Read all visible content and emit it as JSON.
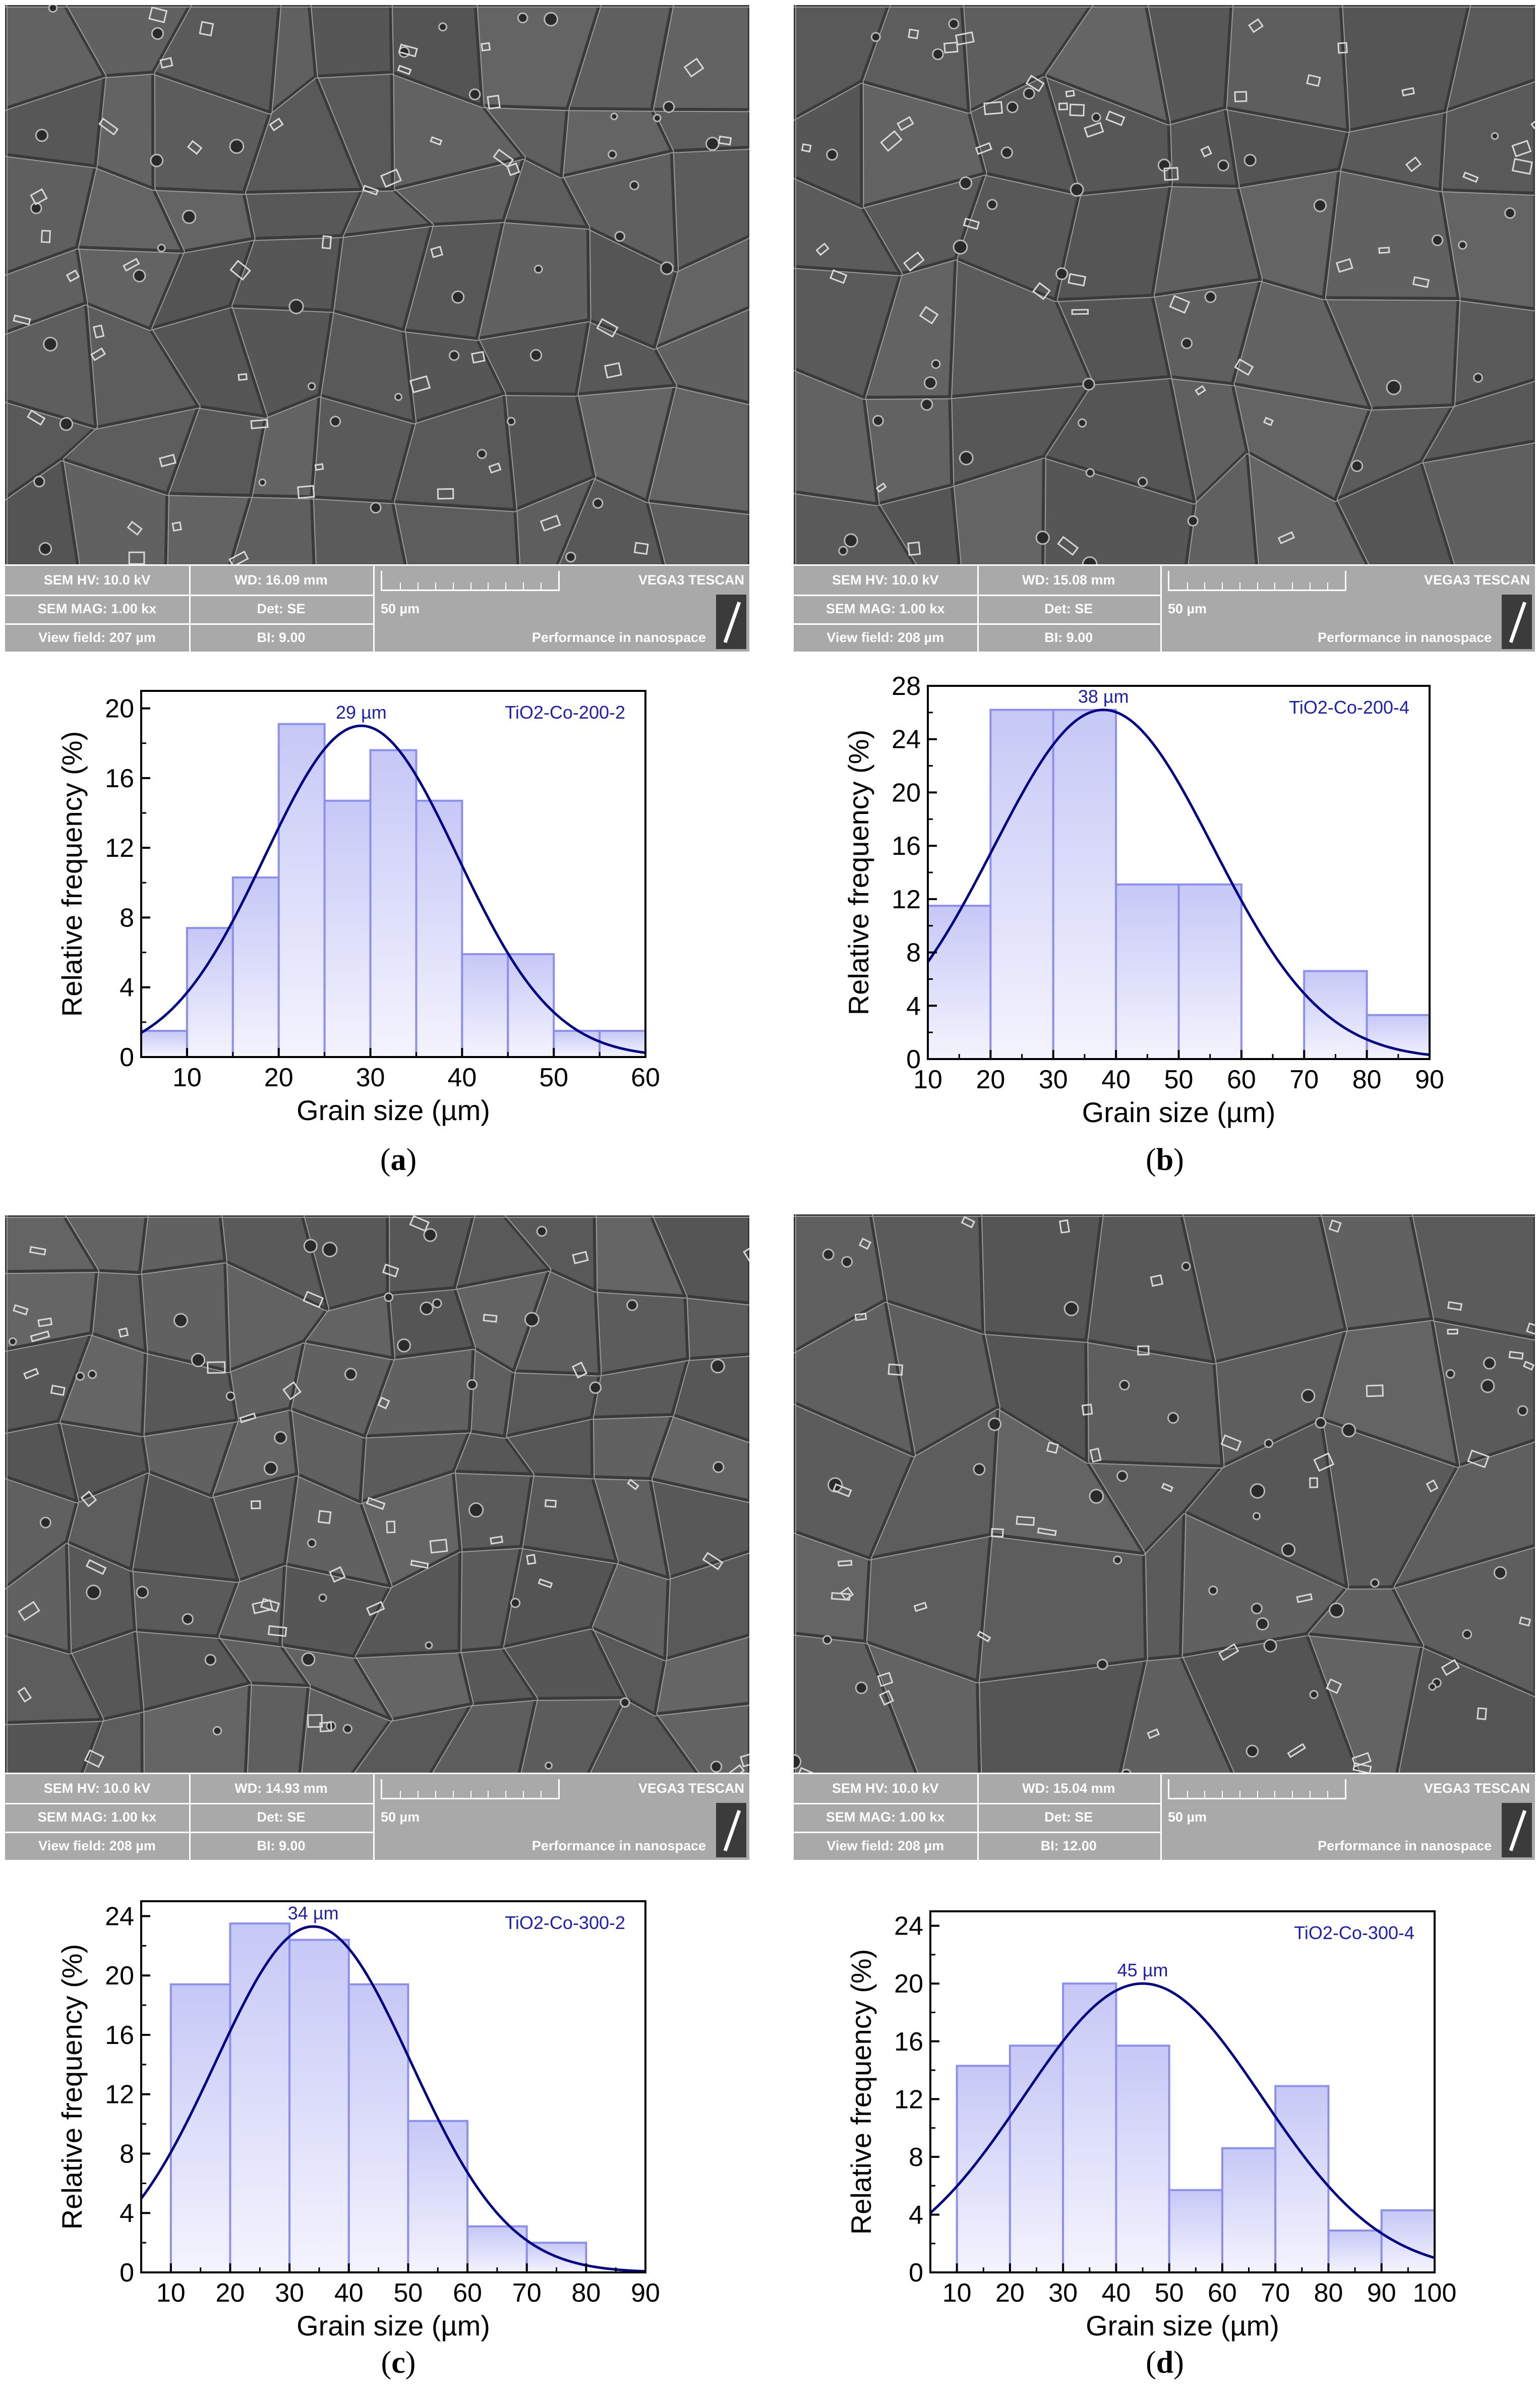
{
  "panels": [
    {
      "id": "a",
      "caption": "a",
      "sem": {
        "hv": "SEM HV: 10.0 kV",
        "wd": "WD: 16.09 mm",
        "mag": "SEM MAG: 1.00 kx",
        "det": "Det: SE",
        "view": "View field: 207 µm",
        "bi": "BI: 9.00",
        "scale": "50 µm",
        "brand": "VEGA3 TESCAN",
        "slogan": "Performance in nanospace"
      }
    },
    {
      "id": "b",
      "caption": "b",
      "sem": {
        "hv": "SEM HV: 10.0 kV",
        "wd": "WD: 15.08 mm",
        "mag": "SEM MAG: 1.00 kx",
        "det": "Det: SE",
        "view": "View field: 208 µm",
        "bi": "BI: 9.00",
        "scale": "50 µm",
        "brand": "VEGA3 TESCAN",
        "slogan": "Performance in nanospace"
      }
    },
    {
      "id": "c",
      "caption": "c",
      "sem": {
        "hv": "SEM HV: 10.0 kV",
        "wd": "WD: 14.93 mm",
        "mag": "SEM MAG: 1.00 kx",
        "det": "Det: SE",
        "view": "View field: 208 µm",
        "bi": "BI: 9.00",
        "scale": "50 µm",
        "brand": "VEGA3 TESCAN",
        "slogan": "Performance in nanospace"
      }
    },
    {
      "id": "d",
      "caption": "d",
      "sem": {
        "hv": "SEM HV: 10.0 kV",
        "wd": "WD: 15.04 mm",
        "mag": "SEM MAG: 1.00 kx",
        "det": "Det: SE",
        "view": "View field: 208 µm",
        "bi": "BI: 12.00",
        "scale": "50 µm",
        "brand": "VEGA3 TESCAN",
        "slogan": "Performance in nanospace"
      }
    }
  ],
  "chart_data": [
    {
      "type": "bar",
      "title": "TiO2-Co-200-2",
      "peak_label": "29 µm",
      "xlabel": "Grain size (µm)",
      "ylabel": "Relative frequency (%)",
      "xlim": [
        5,
        60
      ],
      "ylim": [
        0,
        21
      ],
      "xticks": [
        10,
        20,
        30,
        40,
        50,
        60
      ],
      "yticks": [
        0,
        4,
        8,
        12,
        16,
        20
      ],
      "bins": [
        [
          5,
          10
        ],
        [
          10,
          15
        ],
        [
          15,
          20
        ],
        [
          20,
          25
        ],
        [
          25,
          30
        ],
        [
          30,
          35
        ],
        [
          35,
          40
        ],
        [
          40,
          45
        ],
        [
          45,
          50
        ],
        [
          50,
          55
        ],
        [
          55,
          60
        ]
      ],
      "values": [
        1.5,
        7.4,
        10.3,
        19.1,
        14.7,
        17.6,
        14.7,
        5.9,
        5.9,
        1.5,
        1.5
      ],
      "fit": {
        "type": "gaussian",
        "mean": 29,
        "sd": 10.5,
        "peak": 19.0
      }
    },
    {
      "type": "bar",
      "title": "TiO2-Co-200-4",
      "peak_label": "38 µm",
      "xlabel": "Grain size (µm)",
      "ylabel": "Relative frequency (%)",
      "xlim": [
        10,
        90
      ],
      "ylim": [
        0,
        28
      ],
      "xticks": [
        10,
        20,
        30,
        40,
        50,
        60,
        70,
        80,
        90
      ],
      "yticks": [
        0,
        4,
        8,
        12,
        16,
        20,
        24,
        28
      ],
      "bins": [
        [
          10,
          20
        ],
        [
          20,
          30
        ],
        [
          30,
          40
        ],
        [
          40,
          50
        ],
        [
          50,
          60
        ],
        [
          60,
          70
        ],
        [
          70,
          80
        ],
        [
          80,
          90
        ]
      ],
      "values": [
        11.5,
        26.2,
        26.2,
        13.1,
        13.1,
        0,
        6.6,
        3.3
      ],
      "fit": {
        "type": "gaussian",
        "mean": 38,
        "sd": 17.5,
        "peak": 26.2
      }
    },
    {
      "type": "bar",
      "title": "TiO2-Co-300-2",
      "peak_label": "34 µm",
      "xlabel": "Grain size (µm)",
      "ylabel": "Relative frequency (%)",
      "xlim": [
        5,
        90
      ],
      "ylim": [
        0,
        25
      ],
      "xticks": [
        10,
        20,
        30,
        40,
        50,
        60,
        70,
        80,
        90
      ],
      "yticks": [
        0,
        4,
        8,
        12,
        16,
        20,
        24
      ],
      "bins": [
        [
          10,
          20
        ],
        [
          20,
          30
        ],
        [
          30,
          40
        ],
        [
          40,
          50
        ],
        [
          50,
          60
        ],
        [
          60,
          70
        ],
        [
          70,
          80
        ]
      ],
      "values": [
        19.4,
        23.5,
        22.4,
        19.4,
        10.2,
        3.1,
        2.0
      ],
      "fit": {
        "type": "gaussian",
        "mean": 34,
        "sd": 16.5,
        "peak": 23.3
      }
    },
    {
      "type": "bar",
      "title": "TiO2-Co-300-4",
      "peak_label": "45 µm",
      "xlabel": "Grain size (µm)",
      "ylabel": "Relative frequency (%)",
      "xlim": [
        5,
        100
      ],
      "ylim": [
        0,
        25
      ],
      "xticks": [
        10,
        20,
        30,
        40,
        50,
        60,
        70,
        80,
        90,
        100
      ],
      "yticks": [
        0,
        4,
        8,
        12,
        16,
        20,
        24
      ],
      "bins": [
        [
          10,
          20
        ],
        [
          20,
          30
        ],
        [
          30,
          40
        ],
        [
          40,
          50
        ],
        [
          50,
          60
        ],
        [
          60,
          70
        ],
        [
          70,
          80
        ],
        [
          80,
          90
        ],
        [
          90,
          100
        ]
      ],
      "values": [
        14.3,
        15.7,
        20.0,
        15.7,
        5.7,
        8.6,
        12.9,
        2.9,
        4.3
      ],
      "fit": {
        "type": "gaussian",
        "mean": 45,
        "sd": 22.5,
        "peak": 20.0
      }
    }
  ],
  "colors": {
    "bar_fill_top": "#c6c8f6",
    "bar_fill_bottom": "#f4f4fe",
    "bar_stroke": "#8c8ef0",
    "fit_line": "#00008b",
    "annotation": "#1d1dbb",
    "sem_bg": "#5d5d5d",
    "sem_bar": "#a9a9a9"
  }
}
